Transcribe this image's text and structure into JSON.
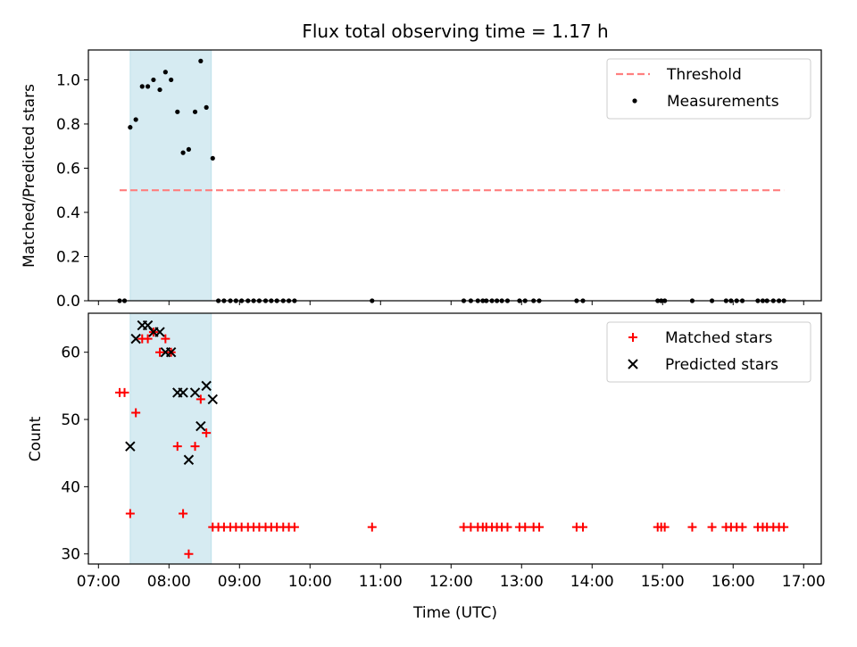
{
  "title": "Flux total observing time = 1.17 h",
  "chart_data": [
    {
      "type": "scatter",
      "panel": "top",
      "ylabel": "Matched/Predicted stars",
      "xlim": [
        6.857,
        17.25
      ],
      "ylim": [
        0,
        1.135
      ],
      "yticks": [
        0.0,
        0.2,
        0.4,
        0.6,
        0.8,
        1.0
      ],
      "ytick_labels": [
        "0.0",
        "0.2",
        "0.4",
        "0.6",
        "0.8",
        "1.0"
      ],
      "shaded_span": [
        7.45,
        8.6
      ],
      "shade_color": "#add8e6",
      "legend_position": "upper right",
      "threshold": {
        "name": "Threshold",
        "y": 0.5,
        "x": [
          7.3,
          16.72
        ],
        "color": "#ff7f7f"
      },
      "measurements": {
        "name": "Measurements",
        "color": "#000000",
        "x": [
          7.3,
          7.37,
          7.45,
          7.53,
          7.62,
          7.7,
          7.78,
          7.87,
          7.95,
          8.03,
          8.12,
          8.2,
          8.28,
          8.37,
          8.45,
          8.53,
          8.62,
          8.7,
          8.78,
          8.87,
          8.95,
          9.03,
          9.12,
          9.2,
          9.28,
          9.37,
          9.45,
          9.53,
          9.62,
          9.7,
          9.78,
          10.88,
          12.18,
          12.28,
          12.38,
          12.45,
          12.5,
          12.58,
          12.65,
          12.72,
          12.8,
          12.97,
          13.05,
          13.17,
          13.25,
          13.78,
          13.87,
          14.93,
          14.98,
          15.03,
          15.42,
          15.7,
          15.9,
          15.97,
          16.05,
          16.13,
          16.35,
          16.42,
          16.48,
          16.57,
          16.65,
          16.72
        ],
        "y": [
          0,
          0,
          0.785,
          0.82,
          0.97,
          0.97,
          1.0,
          0.955,
          1.035,
          1.0,
          0.855,
          0.67,
          0.685,
          0.855,
          1.085,
          0.875,
          0.645,
          0,
          0,
          0,
          0,
          0,
          0,
          0,
          0,
          0,
          0,
          0,
          0,
          0,
          0,
          0,
          0,
          0,
          0,
          0,
          0,
          0,
          0,
          0,
          0,
          0,
          0,
          0,
          0,
          0,
          0,
          0,
          0,
          0,
          0,
          0,
          0,
          0,
          0,
          0,
          0,
          0,
          0,
          0,
          0,
          0
        ]
      }
    },
    {
      "type": "scatter",
      "panel": "bottom",
      "xlabel": "Time (UTC)",
      "ylabel": "Count",
      "xlim": [
        6.857,
        17.25
      ],
      "ylim": [
        28.5,
        65.8
      ],
      "yticks": [
        30,
        40,
        50,
        60
      ],
      "ytick_labels": [
        "30",
        "40",
        "50",
        "60"
      ],
      "xticks": [
        7,
        8,
        9,
        10,
        11,
        12,
        13,
        14,
        15,
        16,
        17
      ],
      "xtick_labels": [
        "07:00",
        "08:00",
        "09:00",
        "10:00",
        "11:00",
        "12:00",
        "13:00",
        "14:00",
        "15:00",
        "16:00",
        "17:00"
      ],
      "shaded_span": [
        7.45,
        8.6
      ],
      "shade_color": "#add8e6",
      "legend_position": "upper right",
      "series": [
        {
          "name": "Matched stars",
          "marker": "plus",
          "color": "#ff0000",
          "x": [
            7.3,
            7.37,
            7.45,
            7.53,
            7.62,
            7.7,
            7.78,
            7.87,
            7.95,
            8.03,
            8.12,
            8.2,
            8.28,
            8.37,
            8.45,
            8.53,
            8.62,
            8.7,
            8.78,
            8.87,
            8.95,
            9.03,
            9.12,
            9.2,
            9.28,
            9.37,
            9.45,
            9.53,
            9.62,
            9.7,
            9.78,
            10.88,
            12.18,
            12.28,
            12.38,
            12.45,
            12.5,
            12.58,
            12.65,
            12.72,
            12.8,
            12.97,
            13.05,
            13.17,
            13.25,
            13.78,
            13.87,
            14.93,
            14.98,
            15.03,
            15.42,
            15.7,
            15.9,
            15.97,
            16.05,
            16.13,
            16.35,
            16.42,
            16.48,
            16.57,
            16.65,
            16.72
          ],
          "y": [
            54,
            54,
            36,
            51,
            62,
            62,
            63,
            60,
            62,
            60,
            46,
            36,
            30,
            46,
            53,
            48,
            34,
            34,
            34,
            34,
            34,
            34,
            34,
            34,
            34,
            34,
            34,
            34,
            34,
            34,
            34,
            34,
            34,
            34,
            34,
            34,
            34,
            34,
            34,
            34,
            34,
            34,
            34,
            34,
            34,
            34,
            34,
            34,
            34,
            34,
            34,
            34,
            34,
            34,
            34,
            34,
            34,
            34,
            34,
            34,
            34,
            34
          ]
        },
        {
          "name": "Predicted stars",
          "marker": "cross",
          "color": "#000000",
          "x": [
            7.45,
            7.53,
            7.62,
            7.7,
            7.78,
            7.87,
            7.95,
            8.03,
            8.12,
            8.2,
            8.28,
            8.37,
            8.45,
            8.53,
            8.62
          ],
          "y": [
            46,
            62,
            64,
            64,
            63,
            63,
            60,
            60,
            54,
            54,
            44,
            54,
            49,
            55,
            53
          ]
        }
      ]
    }
  ]
}
